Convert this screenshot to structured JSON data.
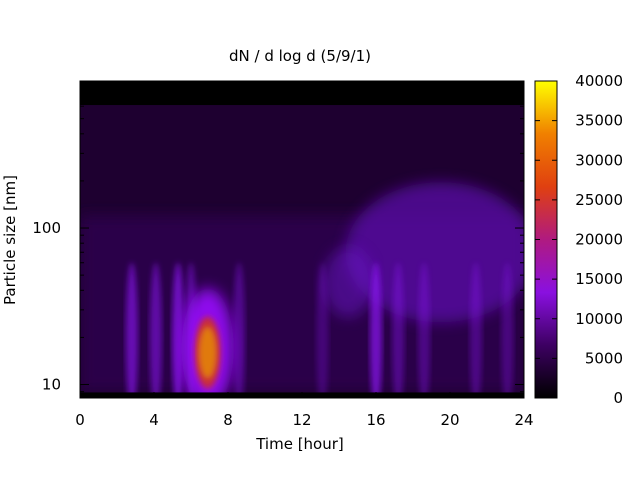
{
  "chart_data": {
    "type": "heatmap",
    "title": "dN / d log d (5/9/1)",
    "xlabel": "Time [hour]",
    "ylabel": "Particle size [nm]",
    "xlim": [
      0,
      24
    ],
    "ylim": [
      8.2,
      870
    ],
    "y_scale": "log",
    "x_ticks": [
      0,
      4,
      8,
      12,
      16,
      20,
      24
    ],
    "y_ticks": [
      10,
      100
    ],
    "colorbar": {
      "range": [
        0,
        40000
      ],
      "ticks": [
        0,
        5000,
        10000,
        15000,
        20000,
        25000,
        30000,
        35000,
        40000
      ],
      "colormap": "gnuplot-pm3d",
      "stops": [
        "#000000",
        "#3d0062",
        "#8a10e0",
        "#b01a80",
        "#e04010",
        "#f08000",
        "#ffff00"
      ]
    },
    "grid": false,
    "legend": "colorbar-right",
    "description_values": {
      "hot_spot": {
        "time": [
          6.2,
          7.6
        ],
        "size_nm": [
          11,
          32
        ],
        "value": 28000
      },
      "diffuse_accumulation_mode": {
        "time": [
          13,
          24
        ],
        "size_nm": [
          30,
          300
        ],
        "value": 8000
      }
    }
  }
}
